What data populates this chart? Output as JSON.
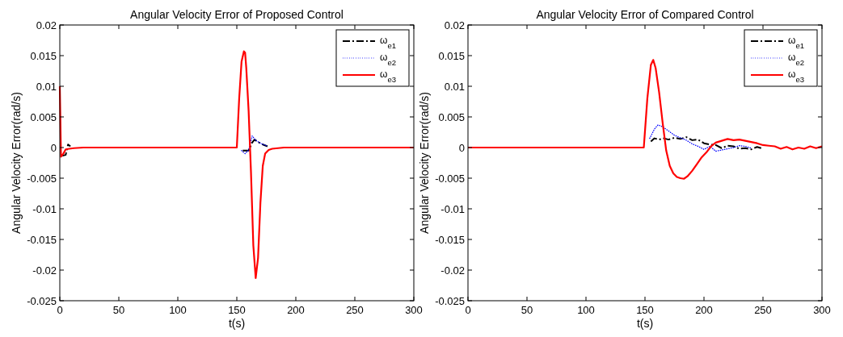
{
  "chart_data": [
    {
      "type": "line",
      "title": "Angular Velocity Error of Proposed Control",
      "xlabel": "t(s)",
      "ylabel": "Angular Velocity Error(rad/s)",
      "xlim": [
        0,
        300
      ],
      "xticks": [
        0,
        50,
        100,
        150,
        200,
        250,
        300
      ],
      "ylim": [
        -0.025,
        0.02
      ],
      "yticks": [
        -0.025,
        -0.02,
        -0.015,
        -0.01,
        -0.005,
        0,
        0.005,
        0.01,
        0.015,
        0.02
      ],
      "grid": false,
      "legend": "top right",
      "series": [
        {
          "name": "ω$_{e1}$",
          "color": "#000000",
          "line_style": "dashdot",
          "x": [
            1,
            3,
            5,
            7,
            9,
            100,
            155,
            160,
            163,
            165,
            168,
            172,
            176
          ],
          "values": [
            -0.0013,
            -0.0013,
            -0.0012,
            0.0005,
            0.0002,
            null,
            -0.0005,
            -0.0005,
            0.0008,
            0.0013,
            0.0009,
            0.0005,
            0.0002
          ]
        },
        {
          "name": "ω$_{e2}$",
          "color": "#0000ff",
          "line_style": "dotted",
          "x": [
            154,
            157,
            160,
            163,
            166,
            170,
            175
          ],
          "values": [
            -0.0005,
            -0.001,
            -0.0004,
            0.0019,
            0.0012,
            0.0007,
            0.0003
          ]
        },
        {
          "name": "ω$_{e3}$",
          "color": "#ff0000",
          "line_style": "solid",
          "x": [
            0,
            1,
            3,
            5,
            8,
            12,
            20,
            150,
            152,
            154,
            156,
            157,
            158,
            160,
            162,
            164,
            166,
            168,
            170,
            172,
            174,
            177,
            180,
            185,
            190,
            300
          ],
          "values": [
            0.01,
            -0.0015,
            -0.001,
            -0.0003,
            -0.0002,
            -0.0001,
            0,
            0,
            0.008,
            0.014,
            0.0157,
            0.0155,
            0.013,
            0.006,
            -0.004,
            -0.016,
            -0.0213,
            -0.018,
            -0.009,
            -0.003,
            -0.001,
            -0.0004,
            -0.0002,
            -0.0001,
            0,
            0
          ]
        }
      ]
    },
    {
      "type": "line",
      "title": "Angular Velocity Error of Compared Control",
      "xlabel": "t(s)",
      "ylabel": "Angular Velocity Error(rad/s)",
      "xlim": [
        0,
        300
      ],
      "xticks": [
        0,
        50,
        100,
        150,
        200,
        250,
        300
      ],
      "ylim": [
        -0.025,
        0.02
      ],
      "yticks": [
        -0.025,
        -0.02,
        -0.015,
        -0.01,
        -0.005,
        0,
        0.005,
        0.01,
        0.015,
        0.02
      ],
      "grid": false,
      "legend": "top right",
      "series": [
        {
          "name": "ω$_{e1}$",
          "color": "#000000",
          "line_style": "dashdot",
          "x": [
            155,
            158,
            162,
            166,
            170,
            175,
            180,
            185,
            190,
            195,
            200,
            205,
            210,
            215,
            220,
            225,
            230,
            235,
            240,
            245,
            250
          ],
          "values": [
            0.001,
            0.0015,
            0.0013,
            0.0015,
            0.0013,
            0.0016,
            0.0014,
            0.0017,
            0.0012,
            0.0013,
            0.0007,
            0.0005,
            0.0004,
            -0.0001,
            0.0003,
            0.0002,
            -0.0002,
            -0.0001,
            -0.0003,
            0.0001,
            -0.0002
          ]
        },
        {
          "name": "ω$_{e2}$",
          "color": "#0000ff",
          "line_style": "dotted",
          "x": [
            154,
            158,
            161,
            165,
            170,
            175,
            180,
            185,
            190,
            195,
            200,
            205,
            210,
            215,
            220,
            225,
            230,
            235,
            240
          ],
          "values": [
            0.0015,
            0.003,
            0.0037,
            0.0034,
            0.0027,
            0.002,
            0.0016,
            0.0012,
            0.0006,
            0.0002,
            -0.0003,
            0.0002,
            -0.0006,
            -0.0004,
            -0.0002,
            0,
            0.0003,
            0.0002,
            -0.0001
          ]
        },
        {
          "name": "ω$_{e3}$",
          "color": "#ff0000",
          "line_style": "solid",
          "x": [
            0,
            149,
            152,
            155,
            157,
            159,
            162,
            165,
            168,
            171,
            174,
            177,
            180,
            183,
            186,
            190,
            194,
            198,
            202,
            206,
            210,
            215,
            220,
            225,
            230,
            235,
            240,
            245,
            250,
            255,
            260,
            265,
            270,
            275,
            280,
            285,
            290,
            295,
            300
          ],
          "values": [
            0,
            0,
            0.008,
            0.0135,
            0.0143,
            0.013,
            0.009,
            0.004,
            -0.0005,
            -0.003,
            -0.0042,
            -0.0048,
            -0.005,
            -0.0051,
            -0.0047,
            -0.0038,
            -0.0027,
            -0.0016,
            -0.0008,
            0.0002,
            0.0008,
            0.0011,
            0.0014,
            0.0012,
            0.0013,
            0.0011,
            0.0009,
            0.0007,
            0.0004,
            0.0003,
            0.0002,
            -0.0002,
            0.0001,
            -0.0003,
            0,
            -0.0002,
            0.0002,
            -0.0001,
            0.0002
          ]
        }
      ]
    }
  ]
}
